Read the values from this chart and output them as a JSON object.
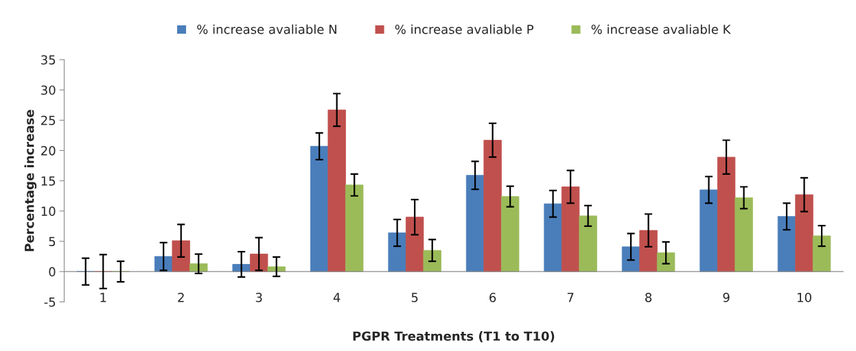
{
  "chart_data": {
    "type": "bar",
    "xlabel": "PGPR Treatments (T1 to T10)",
    "ylabel": "Percentage increase",
    "categories": [
      "1",
      "2",
      "3",
      "4",
      "5",
      "6",
      "7",
      "8",
      "9",
      "10"
    ],
    "series": [
      {
        "name": "% increase avaliable N",
        "color": "#4a7ebb",
        "values": [
          0,
          2.5,
          1.2,
          20.7,
          6.4,
          15.9,
          11.2,
          4.1,
          13.5,
          9.1
        ],
        "errors": [
          2.2,
          2.3,
          2.1,
          2.2,
          2.2,
          2.3,
          2.2,
          2.2,
          2.2,
          2.2
        ]
      },
      {
        "name": "% increase avaliable P",
        "color": "#c0504d",
        "values": [
          0,
          5.1,
          2.9,
          26.7,
          9.0,
          21.7,
          14.0,
          6.8,
          18.9,
          12.7
        ],
        "errors": [
          2.8,
          2.7,
          2.7,
          2.7,
          2.9,
          2.8,
          2.7,
          2.7,
          2.8,
          2.8
        ]
      },
      {
        "name": "% increase avaliable K",
        "color": "#9bbb59",
        "values": [
          0,
          1.3,
          0.8,
          14.3,
          3.5,
          12.4,
          9.2,
          3.1,
          12.2,
          5.9
        ],
        "errors": [
          1.7,
          1.6,
          1.6,
          1.8,
          1.8,
          1.7,
          1.7,
          1.8,
          1.8,
          1.7
        ]
      }
    ],
    "ylim": [
      -5,
      35
    ],
    "yticks": [
      -5,
      0,
      5,
      10,
      15,
      20,
      25,
      30,
      35
    ],
    "grid": false,
    "legend": "top"
  }
}
